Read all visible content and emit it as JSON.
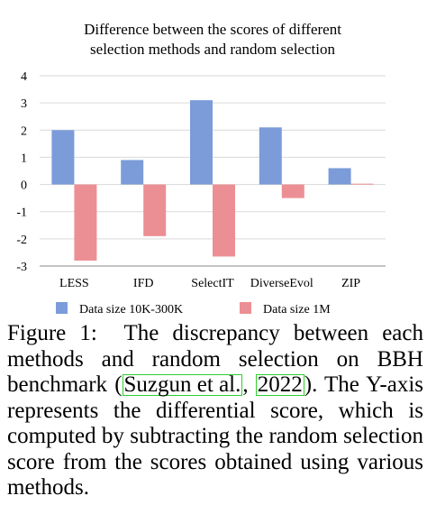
{
  "chart_data": {
    "type": "bar",
    "title": [
      "Difference between the scores of different",
      "selection methods and random selection"
    ],
    "categories": [
      "LESS",
      "IFD",
      "SelectIT",
      "DiverseEvol",
      "ZIP"
    ],
    "series": [
      {
        "name": "Data size 10K-300K",
        "color": "#7b9cd9",
        "values": [
          2.0,
          0.9,
          3.1,
          2.1,
          0.6
        ]
      },
      {
        "name": "Data size 1M",
        "color": "#ec8f94",
        "values": [
          -2.8,
          -1.9,
          -2.65,
          -0.5,
          0.03
        ]
      }
    ],
    "ylim": [
      -3,
      4
    ],
    "yticks": [
      "4",
      "3",
      "2",
      "1",
      "0",
      "-1",
      "-2",
      "-3"
    ],
    "grid": true,
    "legend_position": "bottom"
  },
  "caption": {
    "label": "Figure 1:",
    "text_1": "The discrepancy between each methods and random selection on BBH benchmark (",
    "cite_author": "Suzgun et al.",
    "cite_sep": ", ",
    "cite_year": "2022",
    "text_2": "). The Y-axis represents the differential score, which is computed by subtracting the random selection score from the scores obtained using various methods."
  }
}
